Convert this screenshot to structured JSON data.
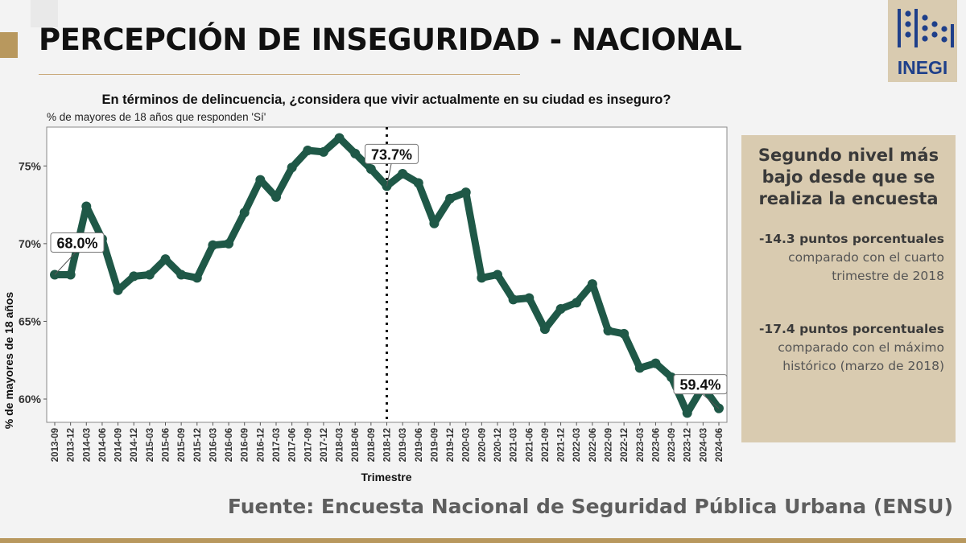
{
  "header": {
    "title": "PERCEPCIÓN DE INSEGURIDAD - NACIONAL",
    "logo_text": "INEGI"
  },
  "chart_data": {
    "type": "line",
    "title": "En términos de delincuencia, ¿considera que vivir actualmente en su ciudad es inseguro?",
    "subtitle": "% de mayores de 18 años que responden 'Sí'",
    "xlabel": "Trimestre",
    "ylabel": "% de mayores de 18 años",
    "categories": [
      "2013-09",
      "2013-12",
      "2014-03",
      "2014-06",
      "2014-09",
      "2014-12",
      "2015-03",
      "2015-06",
      "2015-09",
      "2015-12",
      "2016-03",
      "2016-06",
      "2016-09",
      "2016-12",
      "2017-03",
      "2017-06",
      "2017-09",
      "2017-12",
      "2018-03",
      "2018-06",
      "2018-09",
      "2018-12",
      "2019-03",
      "2019-06",
      "2019-09",
      "2019-12",
      "2020-03",
      "2020-09",
      "2020-12",
      "2021-03",
      "2021-06",
      "2021-09",
      "2021-12",
      "2022-03",
      "2022-06",
      "2022-09",
      "2022-12",
      "2023-03",
      "2023-06",
      "2023-09",
      "2023-12",
      "2024-03",
      "2024-06"
    ],
    "series": [
      {
        "values": [
          68.0,
          68.0,
          72.4,
          70.3,
          67.0,
          67.9,
          68.0,
          69.0,
          68.0,
          67.8,
          69.9,
          70.0,
          72.0,
          74.1,
          73.0,
          74.9,
          76.0,
          75.9,
          76.8,
          75.8,
          74.8,
          73.7,
          74.5,
          73.9,
          71.3,
          72.9,
          73.3,
          67.8,
          68.0,
          66.4,
          66.5,
          64.5,
          65.8,
          66.2,
          67.4,
          64.4,
          64.2,
          62.0,
          62.3,
          61.4,
          59.1,
          60.8,
          59.4
        ]
      }
    ],
    "ylim": [
      58.5,
      77.5
    ],
    "yticks": [
      60,
      65,
      70,
      75
    ],
    "ytick_labels": [
      "60%",
      "65%",
      "70%",
      "75%"
    ],
    "reference_line_category": "2018-12",
    "annotations": [
      {
        "category": "2013-09",
        "label": "68.0%"
      },
      {
        "category": "2018-12",
        "label": "73.7%"
      },
      {
        "category": "2024-06",
        "label": "59.4%"
      }
    ],
    "grid": false,
    "line_color": "#1f5847"
  },
  "panel": {
    "headline": "Segundo nivel más bajo desde que se realiza la encuesta",
    "note1_bold": "-14.3 puntos porcentuales",
    "note1_text": " comparado con el cuarto trimestre de 2018",
    "note2_bold": "-17.4 puntos porcentuales",
    "note2_text": " comparado con el máximo histórico (marzo de 2018)"
  },
  "footer": {
    "source": "Fuente: Encuesta Nacional de Seguridad Pública Urbana (ENSU)"
  },
  "colors": {
    "accent_gold": "#b8985e",
    "panel_bg": "#d9cbb0",
    "logo_blue": "#1e3f8a"
  }
}
